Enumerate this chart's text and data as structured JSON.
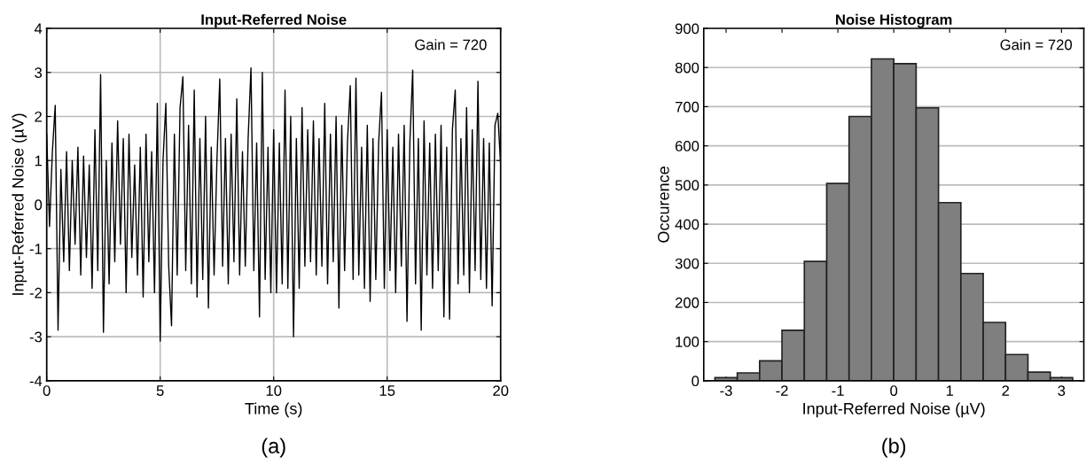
{
  "chart_data": [
    {
      "type": "line",
      "title": "Input-Referred Noise",
      "xlabel": "Time (s)",
      "ylabel": "Input-Referred Noise (µV)",
      "xlim": [
        0,
        20
      ],
      "xticks": [
        0,
        5,
        10,
        15,
        20
      ],
      "ylim": [
        -4,
        4
      ],
      "yticks": [
        -4,
        -3,
        -2,
        -1,
        0,
        1,
        2,
        3,
        4
      ],
      "grid": true,
      "annotations": [
        "Gain = 720",
        "(a)"
      ],
      "series": [
        {
          "color": "#000000",
          "x": [
            0,
            0.125,
            0.25,
            0.375,
            0.5,
            0.625,
            0.75,
            0.875,
            1,
            1.125,
            1.25,
            1.375,
            1.5,
            1.625,
            1.75,
            1.875,
            2,
            2.125,
            2.25,
            2.375,
            2.5,
            2.625,
            2.75,
            2.875,
            3,
            3.125,
            3.25,
            3.375,
            3.5,
            3.625,
            3.75,
            3.875,
            4,
            4.125,
            4.25,
            4.375,
            4.5,
            4.625,
            4.75,
            4.875,
            5,
            5.125,
            5.25,
            5.375,
            5.5,
            5.625,
            5.75,
            5.875,
            6,
            6.125,
            6.25,
            6.375,
            6.5,
            6.625,
            6.75,
            6.875,
            7,
            7.125,
            7.25,
            7.375,
            7.5,
            7.625,
            7.75,
            7.875,
            8,
            8.125,
            8.25,
            8.375,
            8.5,
            8.625,
            8.75,
            8.875,
            9,
            9.125,
            9.25,
            9.375,
            9.5,
            9.625,
            9.75,
            9.875,
            10,
            10.125,
            10.25,
            10.375,
            10.5,
            10.625,
            10.75,
            10.875,
            11,
            11.125,
            11.25,
            11.375,
            11.5,
            11.625,
            11.75,
            11.875,
            12,
            12.125,
            12.25,
            12.375,
            12.5,
            12.625,
            12.75,
            12.875,
            13,
            13.125,
            13.25,
            13.375,
            13.5,
            13.625,
            13.75,
            13.875,
            14,
            14.125,
            14.25,
            14.375,
            14.5,
            14.625,
            14.75,
            14.875,
            15,
            15.125,
            15.25,
            15.375,
            15.5,
            15.625,
            15.75,
            15.875,
            16,
            16.125,
            16.25,
            16.375,
            16.5,
            16.625,
            16.75,
            16.875,
            17,
            17.125,
            17.25,
            17.375,
            17.5,
            17.625,
            17.75,
            17.875,
            18,
            18.125,
            18.25,
            18.375,
            18.5,
            18.625,
            18.75,
            18.875,
            19,
            19.125,
            19.25,
            19.375,
            19.5,
            19.625,
            19.75,
            19.875,
            20
          ],
          "values": [
            1.6,
            -0.5,
            1.2,
            2.25,
            -2.85,
            0.8,
            -1.3,
            1.2,
            -1.5,
            1.0,
            -0.9,
            1.3,
            -1.6,
            1.1,
            -1.2,
            0.9,
            -1.9,
            1.7,
            -1.5,
            2.95,
            -2.9,
            1.0,
            -1.8,
            1.4,
            -1.3,
            1.9,
            -0.9,
            1.5,
            -2.0,
            1.6,
            -1.2,
            0.9,
            -1.6,
            1.3,
            -2.1,
            1.6,
            -1.3,
            1.2,
            -2.0,
            2.3,
            -3.1,
            1.0,
            2.3,
            -1.4,
            -2.75,
            1.6,
            -1.6,
            2.2,
            2.9,
            -1.5,
            1.8,
            -1.8,
            2.6,
            -2.1,
            1.5,
            -1.7,
            2.0,
            -2.35,
            1.3,
            -1.6,
            1.0,
            2.85,
            -1.4,
            1.5,
            -1.8,
            1.6,
            -1.3,
            2.4,
            -1.6,
            1.2,
            -1.4,
            1.5,
            3.1,
            -1.5,
            1.4,
            -2.55,
            3.0,
            -1.7,
            1.3,
            -2.0,
            1.7,
            -2.0,
            1.4,
            -1.8,
            2.6,
            -1.9,
            2.0,
            -3.0,
            1.5,
            -1.9,
            2.2,
            -1.4,
            1.7,
            -1.3,
            1.9,
            -1.6,
            1.5,
            -1.4,
            2.3,
            -1.8,
            1.6,
            -1.3,
            2.0,
            -2.35,
            1.8,
            -1.5,
            1.4,
            2.7,
            -1.7,
            2.87,
            -1.6,
            1.3,
            -1.9,
            1.8,
            -2.2,
            1.5,
            -1.7,
            1.4,
            2.55,
            -1.9,
            1.7,
            -1.5,
            1.3,
            -2.0,
            1.6,
            -1.4,
            1.8,
            -2.65,
            1.4,
            3.05,
            -1.8,
            1.5,
            -2.85,
            1.9,
            -1.6,
            1.4,
            -1.9,
            1.6,
            -1.5,
            1.8,
            -2.55,
            1.3,
            -2.6,
            1.7,
            2.6,
            -1.8,
            1.5,
            -1.6,
            2.2,
            -2.0,
            1.7,
            -1.5,
            2.8,
            -1.7,
            1.5,
            -1.9,
            1.4,
            -2.3,
            1.8,
            2.07,
            0.9
          ]
        }
      ]
    },
    {
      "type": "histogram",
      "title": "Noise Histogram",
      "xlabel": "Input-Referred Noise (µV)",
      "ylabel": "Occurence",
      "xlim": [
        -3.4,
        3.4
      ],
      "xticks": [
        -3,
        -2,
        -1,
        0,
        1,
        2,
        3
      ],
      "ylim": [
        0,
        900
      ],
      "yticks": [
        0,
        100,
        200,
        300,
        400,
        500,
        600,
        700,
        800,
        900
      ],
      "grid": "y",
      "annotations": [
        "Gain = 720",
        "(b)"
      ],
      "color": "#7f7f7f",
      "bins": [
        -3.2,
        -2.8,
        -2.4,
        -2.0,
        -1.6,
        -1.2,
        -0.8,
        -0.4,
        0,
        0.4,
        0.8,
        1.2,
        1.6,
        2.0,
        2.4,
        2.8,
        3.2
      ],
      "values": [
        8,
        20,
        51,
        129,
        305,
        504,
        675,
        822,
        810,
        697,
        455,
        274,
        149,
        67,
        22,
        8
      ]
    }
  ]
}
